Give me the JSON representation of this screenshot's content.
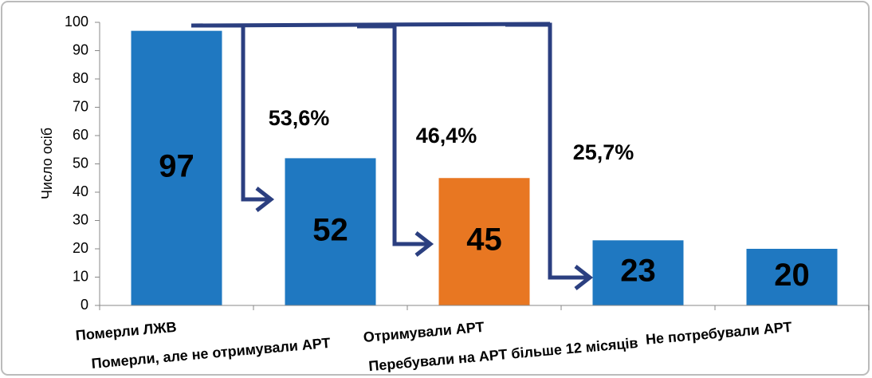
{
  "chart_data": {
    "type": "bar",
    "y_label": "Число осіб",
    "categories": [
      "Померли ЛЖВ",
      "Померли, але не отримували АРТ",
      "Отримували АРТ",
      "Перебували на АРТ більше 12 місяців",
      "Не потребували АРТ"
    ],
    "values": [
      97,
      52,
      45,
      23,
      20
    ],
    "colors": [
      "#1f78c1",
      "#1f78c1",
      "#e87722",
      "#1f78c1",
      "#1f78c1"
    ],
    "ylim": [
      0,
      100
    ],
    "yticks": [
      0,
      10,
      20,
      30,
      40,
      50,
      60,
      70,
      80,
      90,
      100
    ],
    "annotations": [
      "53,6%",
      "46,4%",
      "25,7%"
    ]
  }
}
